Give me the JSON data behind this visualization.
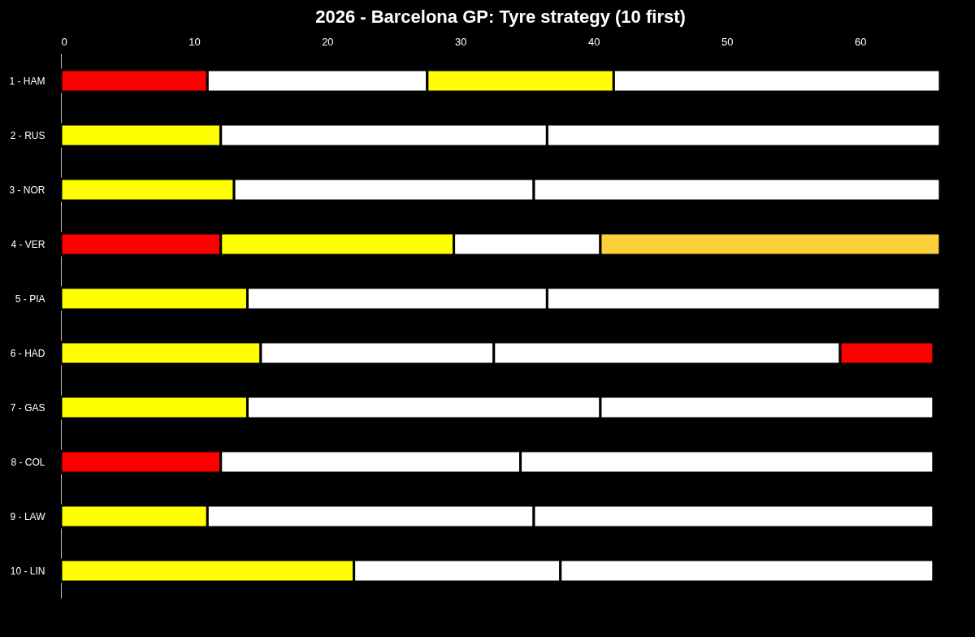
{
  "chart_data": {
    "type": "bar",
    "title": "2026 - Barcelona GP: Tyre strategy (10 first)",
    "orientation": "horizontal",
    "stacked": true,
    "categories": [
      "1 - HAM",
      "2 - RUS",
      "3 - NOR",
      "4 - VER",
      "5 - PIA",
      "6 - HAD",
      "7 - GAS",
      "8 - COL",
      "9 - LAW",
      "10 - LIN"
    ],
    "xlim": [
      0,
      66
    ],
    "xticks": [
      0,
      10,
      20,
      30,
      40,
      50,
      60
    ],
    "series": [
      {
        "values": [
          11,
          12,
          13,
          12,
          14,
          15,
          14,
          12,
          11,
          22
        ],
        "colors": [
          "#ff0000",
          "#ffff00",
          "#ffff00",
          "#ff0000",
          "#ffff00",
          "#ffff00",
          "#ffff00",
          "#ff0000",
          "#ffff00",
          "#ffff00"
        ]
      },
      {
        "values": [
          16.5,
          24.5,
          22.5,
          17.5,
          22.5,
          17.5,
          26.5,
          22.5,
          24.5,
          15.5
        ],
        "colors": [
          "#ffffff",
          "#ffffff",
          "#ffffff",
          "#ffff00",
          "#ffffff",
          "#ffffff",
          "#ffffff",
          "#ffffff",
          "#ffffff",
          "#ffffff"
        ]
      },
      {
        "values": [
          14,
          29.5,
          30.5,
          11,
          29.5,
          26,
          25,
          31,
          30,
          28
        ],
        "colors": [
          "#ffff00",
          "#ffffff",
          "#ffffff",
          "#ffffff",
          "#ffffff",
          "#ffffff",
          "#ffffff",
          "#ffffff",
          "#ffffff",
          "#ffffff"
        ]
      },
      {
        "values": [
          24.5,
          null,
          null,
          25.5,
          null,
          7,
          null,
          null,
          null,
          null
        ],
        "colors": [
          "#ffffff",
          null,
          null,
          "#fcd03a",
          null,
          "#ff0000",
          null,
          null,
          null,
          null
        ]
      }
    ]
  }
}
